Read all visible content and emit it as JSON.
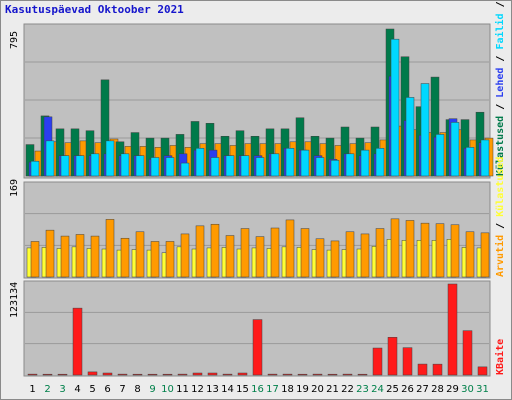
{
  "title": "Kasutuspäevad Oktoober 2021",
  "colors": {
    "visits": "#007a4a",
    "pages": "#2a3ef0",
    "files": "#00d8ff",
    "hits": "#ff9a00",
    "kb": "#ff1a1a",
    "sites": "#ffff33",
    "weekend": "#00804a",
    "weekday": "#000000"
  },
  "legend_top": [
    "Külastused",
    "Lehed",
    "Failid",
    "Pöördumised"
  ],
  "legend_top_seps": [
    " / ",
    " / ",
    " / "
  ],
  "legend_mid": [
    "Arvutid",
    "Külastused"
  ],
  "legend_mid_seps": [
    " / "
  ],
  "legend_bot": [
    "KBaite"
  ],
  "chart_data": [
    {
      "type": "bar",
      "panel": "top",
      "ymax_label": "795",
      "ylim": [
        0,
        795
      ],
      "x": [
        "1",
        "2",
        "3",
        "4",
        "5",
        "6",
        "7",
        "8",
        "9",
        "10",
        "11",
        "12",
        "13",
        "14",
        "15",
        "16",
        "17",
        "18",
        "19",
        "20",
        "21",
        "22",
        "23",
        "24",
        "25",
        "26",
        "27",
        "28",
        "29",
        "30",
        "31"
      ],
      "weekend": [
        false,
        true,
        true,
        false,
        false,
        false,
        false,
        false,
        true,
        true,
        false,
        false,
        false,
        false,
        false,
        true,
        true,
        false,
        false,
        false,
        false,
        false,
        true,
        true,
        false,
        false,
        false,
        false,
        false,
        true,
        true
      ],
      "series": [
        {
          "name": "Külastused",
          "values": [
            170,
            325,
            255,
            255,
            245,
            520,
            185,
            235,
            205,
            205,
            225,
            295,
            285,
            215,
            245,
            215,
            255,
            255,
            315,
            215,
            205,
            265,
            205,
            265,
            795,
            645,
            375,
            535,
            305,
            305,
            345
          ]
        },
        {
          "name": "Lehed",
          "values": [
            75,
            320,
            110,
            110,
            110,
            120,
            110,
            110,
            90,
            110,
            120,
            140,
            140,
            110,
            110,
            110,
            120,
            150,
            140,
            110,
            90,
            120,
            110,
            120,
            540,
            300,
            220,
            210,
            310,
            150,
            180
          ]
        },
        {
          "name": "Failid",
          "values": [
            80,
            190,
            110,
            110,
            120,
            190,
            120,
            110,
            100,
            100,
            70,
            150,
            100,
            110,
            110,
            100,
            120,
            150,
            140,
            100,
            85,
            120,
            140,
            150,
            740,
            425,
            500,
            225,
            290,
            155,
            195
          ]
        },
        {
          "name": "Pöördumised",
          "values": [
            135,
            185,
            180,
            190,
            180,
            200,
            160,
            160,
            155,
            165,
            155,
            175,
            175,
            165,
            175,
            175,
            175,
            185,
            185,
            175,
            165,
            175,
            180,
            195,
            270,
            250,
            235,
            235,
            250,
            195,
            205
          ]
        }
      ]
    },
    {
      "type": "bar",
      "panel": "middle",
      "ymax_label": "169",
      "ylim": [
        0,
        169
      ],
      "x": [
        "1",
        "2",
        "3",
        "4",
        "5",
        "6",
        "7",
        "8",
        "9",
        "10",
        "11",
        "12",
        "13",
        "14",
        "15",
        "16",
        "17",
        "18",
        "19",
        "20",
        "21",
        "22",
        "23",
        "24",
        "25",
        "26",
        "27",
        "28",
        "29",
        "30",
        "31"
      ],
      "series": [
        {
          "name": "Arvutid",
          "values": [
            54,
            55,
            53,
            56,
            53,
            52,
            50,
            51,
            50,
            45,
            56,
            52,
            54,
            55,
            52,
            54,
            53,
            56,
            55,
            51,
            50,
            51,
            52,
            57,
            70,
            68,
            68,
            68,
            70,
            55,
            54
          ]
        },
        {
          "name": "Külastused",
          "values": [
            66,
            87,
            76,
            79,
            76,
            107,
            72,
            84,
            66,
            66,
            80,
            95,
            98,
            77,
            90,
            75,
            91,
            106,
            90,
            71,
            67,
            84,
            80,
            90,
            108,
            105,
            100,
            99,
            97,
            84,
            82
          ]
        },
        {
          "name": "Pöördumised",
          "values": [
            100,
            100,
            100,
            100,
            100,
            110,
            100,
            100,
            100,
            100,
            100,
            100,
            100,
            100,
            100,
            100,
            100,
            100,
            100,
            100,
            100,
            100,
            100,
            100,
            100,
            100,
            100,
            100,
            100,
            100,
            100
          ]
        }
      ]
    },
    {
      "type": "bar",
      "panel": "bottom",
      "ymax_label": "123134",
      "ylim": [
        0,
        123134
      ],
      "x": [
        "1",
        "2",
        "3",
        "4",
        "5",
        "6",
        "7",
        "8",
        "9",
        "10",
        "11",
        "12",
        "13",
        "14",
        "15",
        "16",
        "17",
        "18",
        "19",
        "20",
        "21",
        "22",
        "23",
        "24",
        "25",
        "26",
        "27",
        "28",
        "29",
        "30",
        "31"
      ],
      "series": [
        {
          "name": "KBaite",
          "values": [
            1200,
            1100,
            1100,
            90500,
            4200,
            2700,
            1200,
            1100,
            1100,
            1100,
            1200,
            2700,
            2700,
            1200,
            2700,
            75000,
            1200,
            1200,
            1100,
            1200,
            1100,
            1200,
            1100,
            36500,
            51000,
            37000,
            14800,
            14700,
            123134,
            60000,
            11000
          ]
        }
      ]
    }
  ]
}
